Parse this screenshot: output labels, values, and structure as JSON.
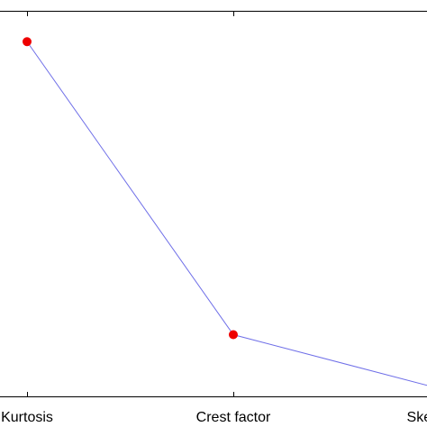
{
  "chart_data": {
    "type": "line",
    "categories": [
      "Kurtosis",
      "Crest factor",
      "Skewness"
    ],
    "series": [
      {
        "values": [
          0.92,
          0.16,
          0.02
        ]
      }
    ],
    "ylim": [
      0,
      1
    ],
    "grid": false,
    "colors": {
      "line": "#6f6fe8",
      "marker": "#ee0000",
      "axis": "#000000"
    },
    "marker_shape": "circle"
  }
}
